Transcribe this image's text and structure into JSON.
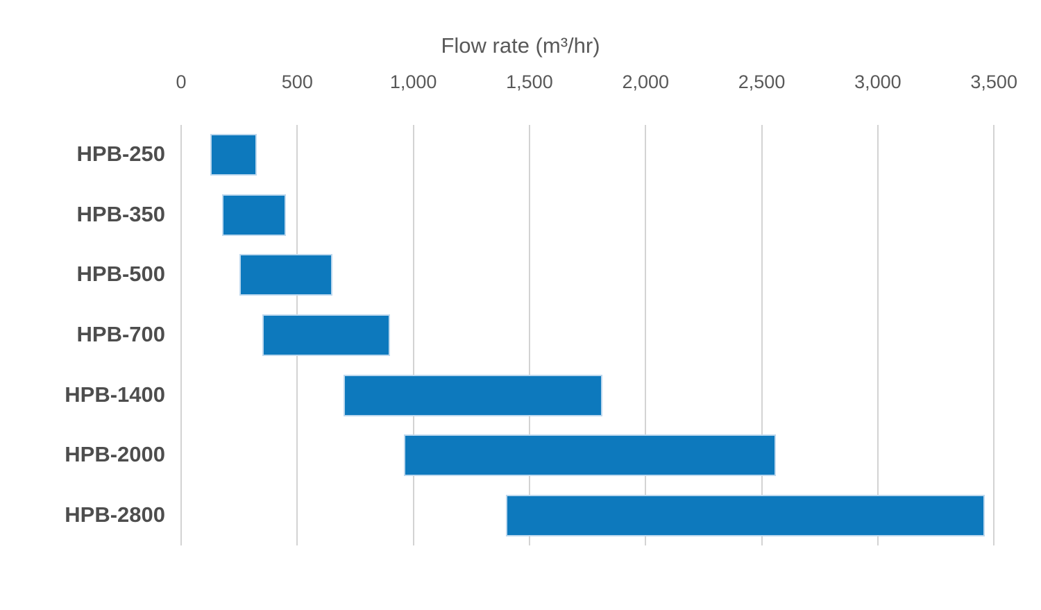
{
  "chart_data": {
    "type": "bar",
    "subtype": "horizontal-range-bars",
    "title": "",
    "xlabel": "Flow rate (m³/hr)",
    "ylabel": "",
    "categories": [
      "HPB-250",
      "HPB-350",
      "HPB-500",
      "HPB-700",
      "HPB-1400",
      "HPB-2000",
      "HPB-2800"
    ],
    "series": [
      {
        "name": "Flow rate range (m³/hr)",
        "ranges": [
          [
            125,
            325
          ],
          [
            175,
            450
          ],
          [
            250,
            650
          ],
          [
            350,
            900
          ],
          [
            700,
            1815
          ],
          [
            960,
            2560
          ],
          [
            1400,
            3460
          ]
        ]
      }
    ],
    "xlim": [
      0,
      3500
    ],
    "xticks": [
      0,
      500,
      1000,
      1500,
      2000,
      2500,
      3000,
      3500
    ],
    "xtick_labels": [
      "0",
      "500",
      "1,000",
      "1,500",
      "2,000",
      "2,500",
      "3,000",
      "3,500"
    ],
    "grid": true,
    "legend": false,
    "axis_position": "top",
    "colors": {
      "bar_fill": "#0d79bd",
      "bar_border": "#bdd8ee",
      "gridline": "#d3d3d3",
      "tick_text": "#595959",
      "axis_title_text": "#595959",
      "category_text": "#4d4d4d",
      "background": "#ffffff"
    }
  }
}
